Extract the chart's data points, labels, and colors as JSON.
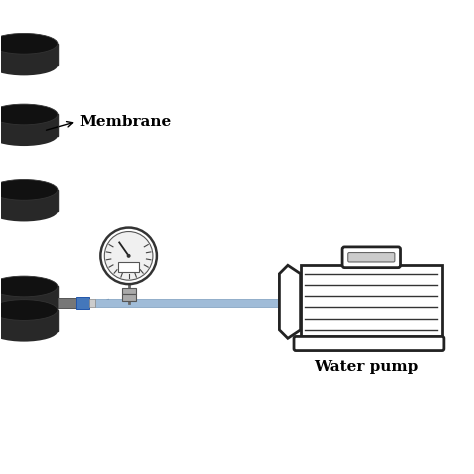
{
  "bg_color": "#ffffff",
  "disk_color_top": "#111111",
  "disk_color_side": "#282828",
  "disk_color_edge": "#555555",
  "label_membrane": "Membrane",
  "label_pump": "Water pump",
  "pipe_color": "#a0bcd8",
  "pipe_edge_color": "#7a9cbd",
  "arrow_color": "#6080a0",
  "gauge_bg": "#f0f0f0",
  "connector_gray": "#777777",
  "valve_blue": "#4477bb",
  "lw_motor": 2.0,
  "font_size_label": 11,
  "font_size_pump": 11
}
